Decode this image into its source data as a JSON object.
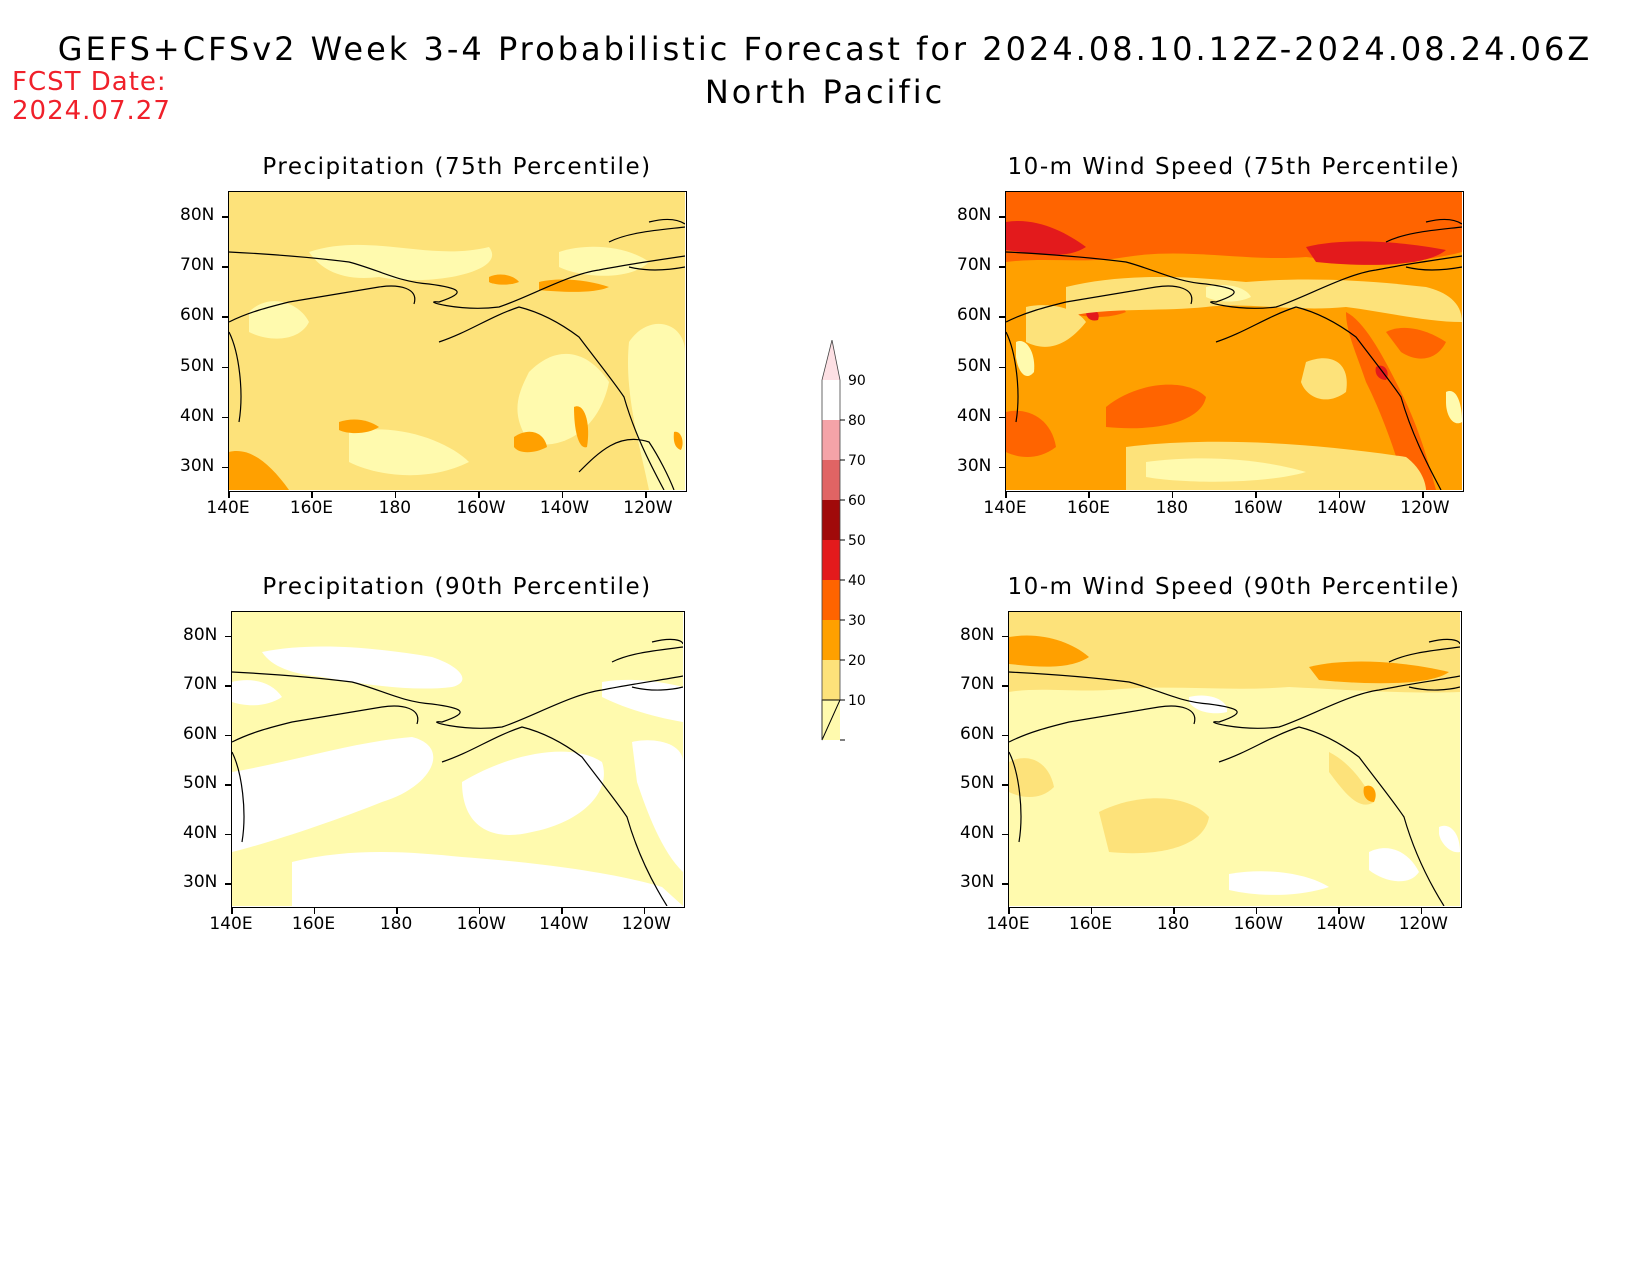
{
  "header": {
    "title": "GEFS+CFSv2 Week 3-4 Probabilistic Forecast for 2024.08.10.12Z-2024.08.24.06Z",
    "subtitle": "North Pacific",
    "fcst_label": "FCST Date:",
    "fcst_date": "2024.07.27"
  },
  "axes": {
    "lat_labels": [
      "80N",
      "70N",
      "60N",
      "50N",
      "40N",
      "30N"
    ],
    "lon_labels": [
      "140E",
      "160E",
      "180",
      "160W",
      "140W",
      "120W"
    ]
  },
  "panels": [
    {
      "title": "Precipitation (75th Percentile)",
      "dominant_class": "20-30"
    },
    {
      "title": "10-m Wind Speed (75th Percentile)",
      "dominant_class": "30-40"
    },
    {
      "title": "Precipitation (90th Percentile)",
      "dominant_class": "10-20"
    },
    {
      "title": "10-m Wind Speed (90th Percentile)",
      "dominant_class": "10-20"
    }
  ],
  "colorbar": {
    "levels": [
      "90",
      "80",
      "70",
      "60",
      "50",
      "40",
      "30",
      "20",
      "10"
    ],
    "colors": [
      "#fde0e4",
      "#f4a3a8",
      "#e06464",
      "#a00a0a",
      "#e31a1c",
      "#ff6400",
      "#ffa000",
      "#fde27a",
      "#fffaae"
    ]
  },
  "palette": {
    "white": "#ffffff",
    "c10": "#fffaae",
    "c20": "#fde27a",
    "c30": "#ffa000",
    "c40": "#ff6400",
    "c50": "#e31a1c",
    "c60": "#a00a0a"
  }
}
